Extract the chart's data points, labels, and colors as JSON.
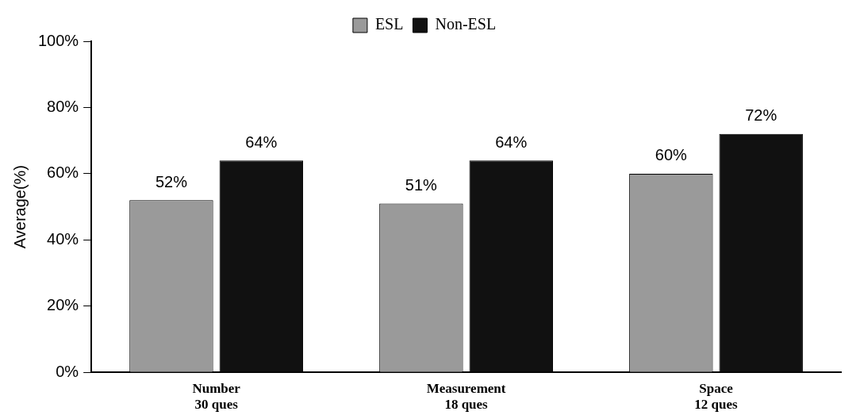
{
  "chart_data": {
    "type": "bar",
    "categories": [
      "Number\n30 ques",
      "Measurement\n18 ques",
      "Space\n12 ques"
    ],
    "ylabel": "Average(%)",
    "series": [
      {
        "name": "ESL",
        "color": "#9a9a9a",
        "values": [
          52,
          51,
          60
        ]
      },
      {
        "name": "Non-ESL",
        "color": "#111111",
        "values": [
          64,
          64,
          72
        ]
      }
    ],
    "value_labels": [
      [
        "52%",
        "51%",
        "60%"
      ],
      [
        "64%",
        "64%",
        "72%"
      ]
    ],
    "ylim": [
      0,
      100
    ],
    "yticks": [
      {
        "value": 0,
        "label": "0%"
      },
      {
        "value": 20,
        "label": "20%"
      },
      {
        "value": 40,
        "label": "40%"
      },
      {
        "value": 60,
        "label": "60%"
      },
      {
        "value": 80,
        "label": "80%"
      },
      {
        "value": 100,
        "label": "100%"
      }
    ],
    "grid": false,
    "legend": "top"
  }
}
